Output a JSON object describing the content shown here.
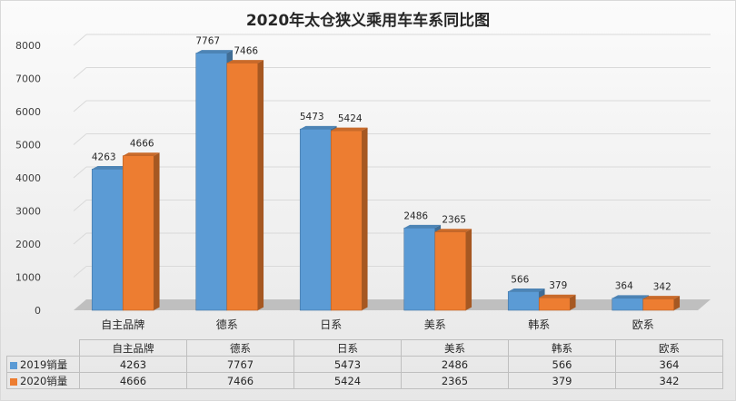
{
  "chart_data": {
    "type": "bar",
    "title": "2020年太仓狭义乘用车车系同比图",
    "categories": [
      "自主品牌",
      "德系",
      "日系",
      "美系",
      "韩系",
      "欧系"
    ],
    "series": [
      {
        "name": "2019销量",
        "values": [
          4263,
          7767,
          5473,
          2486,
          566,
          364
        ],
        "color": "#5b9bd5"
      },
      {
        "name": "2020销量",
        "values": [
          4666,
          7466,
          5424,
          2365,
          379,
          342
        ],
        "color": "#ed7d31"
      }
    ],
    "ylim": [
      0,
      8000
    ],
    "yticks": [
      "0",
      "1000",
      "2000",
      "3000",
      "4000",
      "5000",
      "6000",
      "7000",
      "8000"
    ],
    "grid": true,
    "legend": "data-table",
    "three_d": true
  },
  "table": {
    "rows": [
      {
        "label": "2019销量",
        "key_color": "#5b9bd5",
        "cells": [
          "4263",
          "7767",
          "5473",
          "2486",
          "566",
          "364"
        ]
      },
      {
        "label": "2020销量",
        "key_color": "#ed7d31",
        "cells": [
          "4666",
          "7466",
          "5424",
          "2365",
          "379",
          "342"
        ]
      }
    ]
  }
}
